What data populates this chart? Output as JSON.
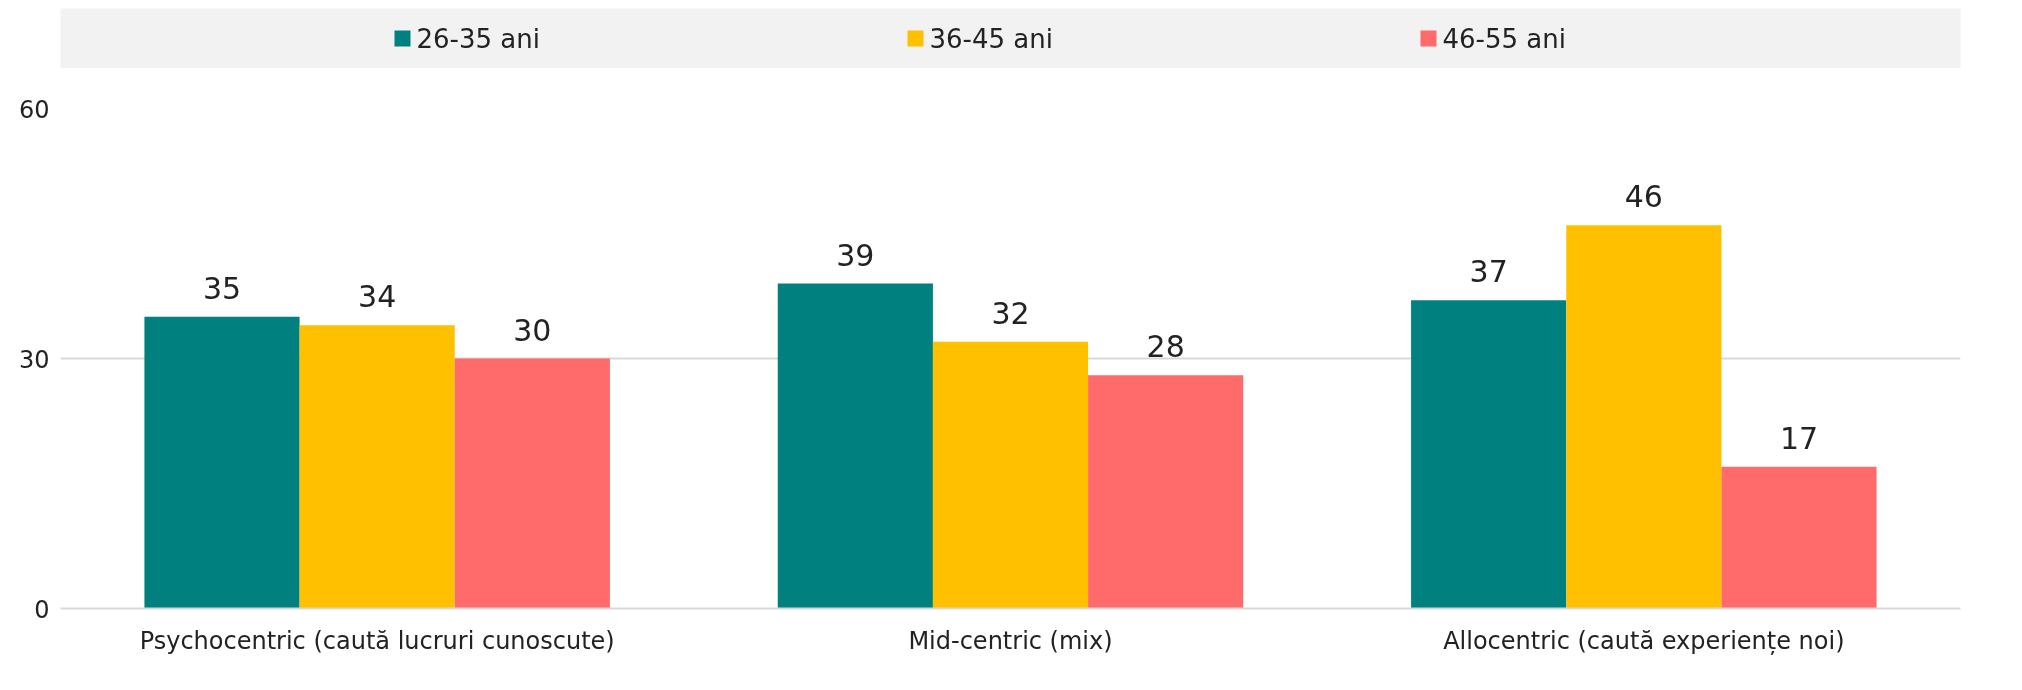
{
  "chart_data": {
    "type": "bar",
    "categories": [
      "Psychocentric (caută lucruri cunoscute)",
      "Mid-centric (mix)",
      "Allocentric (caută experiențe noi)"
    ],
    "series": [
      {
        "name": "26-35 ani",
        "color": "#00807f",
        "values": [
          35,
          39,
          37
        ]
      },
      {
        "name": "36-45 ani",
        "color": "#ffc000",
        "values": [
          34,
          32,
          46
        ]
      },
      {
        "name": "46-55 ani",
        "color": "#ff6b6b",
        "values": [
          30,
          28,
          17
        ]
      }
    ],
    "ylim": [
      0,
      60
    ],
    "yticks": [
      0,
      30,
      60
    ],
    "grid": "y",
    "legend": "top",
    "data_labels": true
  }
}
